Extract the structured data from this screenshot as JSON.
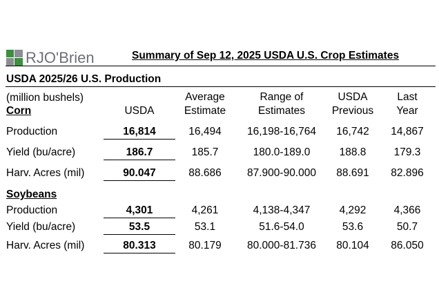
{
  "brand": {
    "logo_text": "RJO'Brien",
    "logo_green": "#3b8f3e",
    "logo_gray": "#8b8e94"
  },
  "doc": {
    "title": "Summary of Sep 12, 2025 USDA U.S. Crop Estimates",
    "section_title": "USDA 2025/26 U.S. Production",
    "units": "(million bushels)"
  },
  "columns": {
    "usda": "USDA",
    "avg_line1": "Average",
    "avg_line2": "Estimate",
    "range_line1": "Range of",
    "range_line2": "Estimates",
    "prev_line1": "USDA",
    "prev_line2": "Previous",
    "last_line1": "Last",
    "last_line2": "Year"
  },
  "crops": [
    {
      "name": "Corn",
      "rows": [
        {
          "label": "Production",
          "usda": "16,814",
          "average": "16,494",
          "range": "16,198-16,764",
          "previous": "16,742",
          "last_year": "14,867"
        },
        {
          "label": "Yield (bu/acre)",
          "usda": "186.7",
          "average": "185.7",
          "range": "180.0-189.0",
          "previous": "188.8",
          "last_year": "179.3"
        },
        {
          "label": "Harv. Acres (mil)",
          "usda": "90.047",
          "average": "88.686",
          "range": "87.900-90.000",
          "previous": "88.691",
          "last_year": "82.896"
        }
      ]
    },
    {
      "name": "Soybeans",
      "rows": [
        {
          "label": "Production",
          "usda": "4,301",
          "average": "4,261",
          "range": "4,138-4,347",
          "previous": "4,292",
          "last_year": "4,366"
        },
        {
          "label": "Yield (bu/acre)",
          "usda": "53.5",
          "average": "53.1",
          "range": "51.6-54.0",
          "previous": "53.6",
          "last_year": "50.7"
        },
        {
          "label": "Harv. Acres (mil)",
          "usda": "80.313",
          "average": "80.179",
          "range": "80.000-81.736",
          "previous": "80.104",
          "last_year": "86.050"
        }
      ]
    }
  ]
}
